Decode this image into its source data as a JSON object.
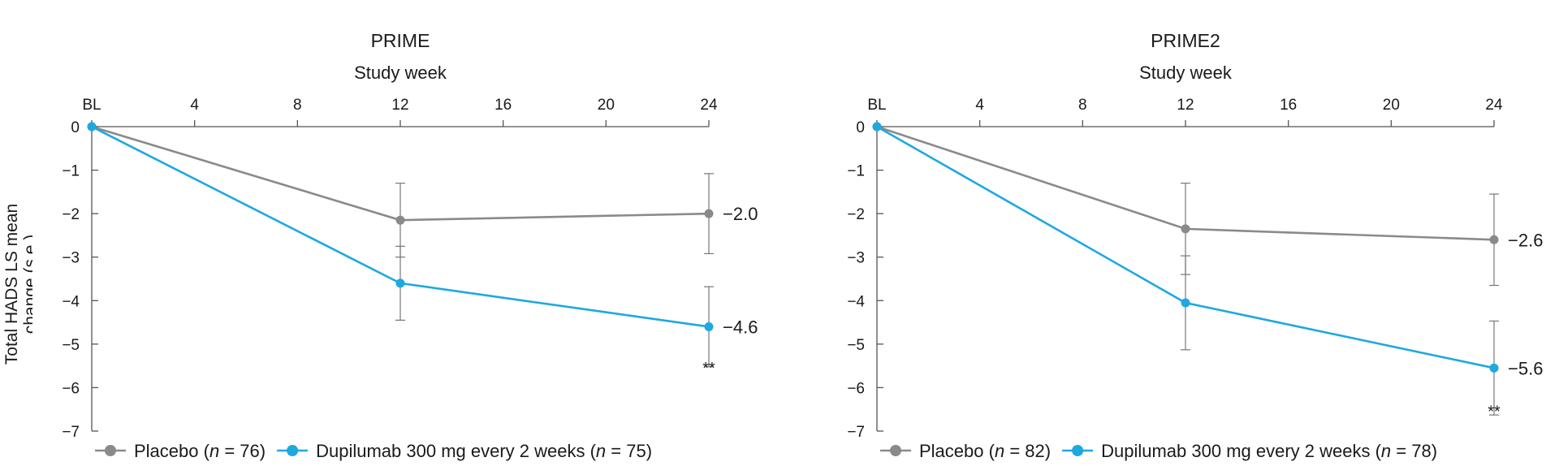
{
  "ylabel_line1": "Total HADS LS mean",
  "ylabel_line2": "change (s.e.)",
  "colors": {
    "placebo": "#8a8a8a",
    "dupilumab": "#1ea8e0",
    "axis": "#555555"
  },
  "chart_data": [
    {
      "type": "line",
      "title": "PRIME",
      "xlabel": "Study week",
      "ylabel": "Total HADS LS mean change (s.e.)",
      "x_ticks": [
        "BL",
        "4",
        "8",
        "12",
        "16",
        "20",
        "24"
      ],
      "x_tick_values": [
        0,
        4,
        8,
        12,
        16,
        20,
        24
      ],
      "xlim": [
        0,
        24
      ],
      "ylim": [
        -7,
        0
      ],
      "y_ticks": [
        "0",
        "−1",
        "−2",
        "−3",
        "−4",
        "−5",
        "−6",
        "−7"
      ],
      "y_tick_values": [
        0,
        -1,
        -2,
        -3,
        -4,
        -5,
        -6,
        -7
      ],
      "x": [
        0,
        12,
        24
      ],
      "series": [
        {
          "key": "placebo",
          "legend_prefix": "Placebo (",
          "legend_n": "76",
          "legend_suffix": "",
          "values": [
            0,
            -2.15,
            -2.0
          ],
          "errors": [
            0,
            0.85,
            0.92
          ],
          "end_label": "−2.0"
        },
        {
          "key": "dupilumab",
          "legend_prefix": "Dupilumab 300 mg every 2 weeks (",
          "legend_n": "75",
          "legend_suffix": "",
          "values": [
            0,
            -3.6,
            -4.6
          ],
          "errors": [
            0,
            0.85,
            0.92
          ],
          "end_label": "−4.6"
        }
      ],
      "significance": {
        "x": 24,
        "y": -5.6,
        "label": "**"
      }
    },
    {
      "type": "line",
      "title": "PRIME2",
      "xlabel": "Study week",
      "ylabel": "",
      "x_ticks": [
        "BL",
        "4",
        "8",
        "12",
        "16",
        "20",
        "24"
      ],
      "x_tick_values": [
        0,
        4,
        8,
        12,
        16,
        20,
        24
      ],
      "xlim": [
        0,
        24
      ],
      "ylim": [
        -7,
        0
      ],
      "y_ticks": [
        "0",
        "−1",
        "−2",
        "−3",
        "−4",
        "−5",
        "−6",
        "−7"
      ],
      "y_tick_values": [
        0,
        -1,
        -2,
        -3,
        -4,
        -5,
        -6,
        -7
      ],
      "x": [
        0,
        12,
        24
      ],
      "series": [
        {
          "key": "placebo",
          "legend_prefix": "Placebo (",
          "legend_n": "82",
          "legend_suffix": "",
          "values": [
            0,
            -2.35,
            -2.6
          ],
          "errors": [
            0,
            1.05,
            1.05
          ],
          "end_label": "−2.6"
        },
        {
          "key": "dupilumab",
          "legend_prefix": "Dupilumab 300 mg every 2 weeks (",
          "legend_n": "78",
          "legend_suffix": "",
          "values": [
            0,
            -4.05,
            -5.55
          ],
          "errors": [
            0,
            1.08,
            1.08
          ],
          "end_label": "−5.6"
        }
      ],
      "significance": {
        "x": 24,
        "y": -6.6,
        "label": "**"
      }
    }
  ]
}
